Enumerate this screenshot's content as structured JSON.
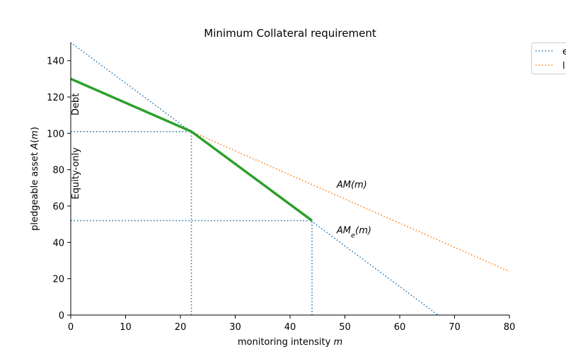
{
  "chart_data": {
    "type": "line",
    "title": "Minimum Collateral requirement",
    "xlabel": "monitoring intensity m",
    "ylabel": "pledgeable asset A(m)",
    "xlim": [
      0,
      80
    ],
    "ylim": [
      0,
      150
    ],
    "xticks": [
      "0",
      "10",
      "20",
      "30",
      "40",
      "50",
      "60",
      "70",
      "80"
    ],
    "yticks": [
      "0",
      "20",
      "40",
      "60",
      "80",
      "100",
      "120",
      "140"
    ],
    "grid": false,
    "legend_position": "outside top-right (partially cut off)",
    "legend": [
      {
        "label": "e",
        "color": "#1f77b4",
        "style": "dotted"
      },
      {
        "label": "l",
        "color": "#ff7f0e",
        "style": "dotted"
      }
    ],
    "series": [
      {
        "name": "e",
        "color": "#1f77b4",
        "style": "dotted",
        "x": [
          0,
          67
        ],
        "y": [
          150,
          0
        ]
      },
      {
        "name": "l",
        "color": "#ff7f0e",
        "style": "dotted",
        "x": [
          22,
          80
        ],
        "y": [
          101,
          24
        ]
      },
      {
        "color": "#2ca02c",
        "style": "solid",
        "x": [
          0,
          22,
          44
        ],
        "y": [
          130,
          101,
          52
        ]
      }
    ],
    "reference_lines": [
      {
        "color": "#1f77b4",
        "style": "dotted",
        "x": [
          0,
          22
        ],
        "y": [
          101,
          101
        ]
      },
      {
        "color": "#1f77b4",
        "style": "dotted",
        "x": [
          22,
          22
        ],
        "y": [
          0,
          101
        ]
      },
      {
        "color": "#1f77b4",
        "style": "dotted",
        "x": [
          0,
          44
        ],
        "y": [
          52,
          52
        ]
      },
      {
        "color": "#1f77b4",
        "style": "dotted",
        "x": [
          44,
          44
        ],
        "y": [
          0,
          52
        ]
      }
    ],
    "annotations": [
      {
        "text": "AM(m)",
        "x": 48.5,
        "y": 72
      },
      {
        "text": "AM_e(m)",
        "x": 48.5,
        "y": 47
      }
    ],
    "region_labels": [
      {
        "text": "Debt",
        "y": 116
      },
      {
        "text": "Equity-only",
        "y": 78
      }
    ]
  }
}
